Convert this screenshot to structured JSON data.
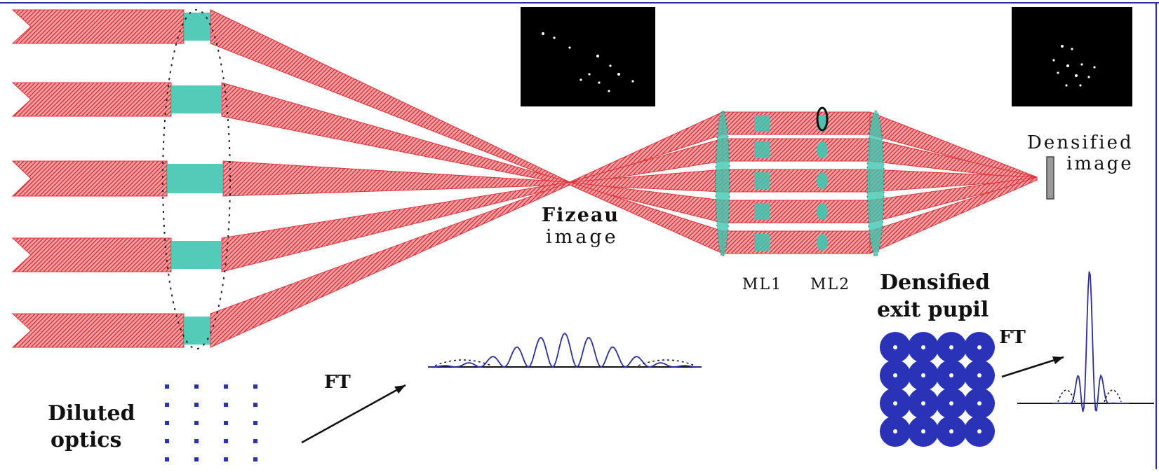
{
  "labels": {
    "fizeau_image": [
      "Fizeau",
      "image"
    ],
    "densified_image": [
      "Densified",
      "image"
    ],
    "ml1": "ML1",
    "ml2": "ML2",
    "densified_exit_pupil": [
      "Densified",
      "exit pupil"
    ],
    "diluted_optics": [
      "Diluted",
      "optics"
    ],
    "ft_left": "FT",
    "ft_right": "FT"
  },
  "colors": {
    "beam": "#e0323a",
    "beam_hatch": "#f5a2a6",
    "lens": "#3fc6b0",
    "pupil_dot": "#2a33b8",
    "profile": "#2a2f9c",
    "frame_line": "#2a2fa8",
    "panel": "#000000"
  }
}
